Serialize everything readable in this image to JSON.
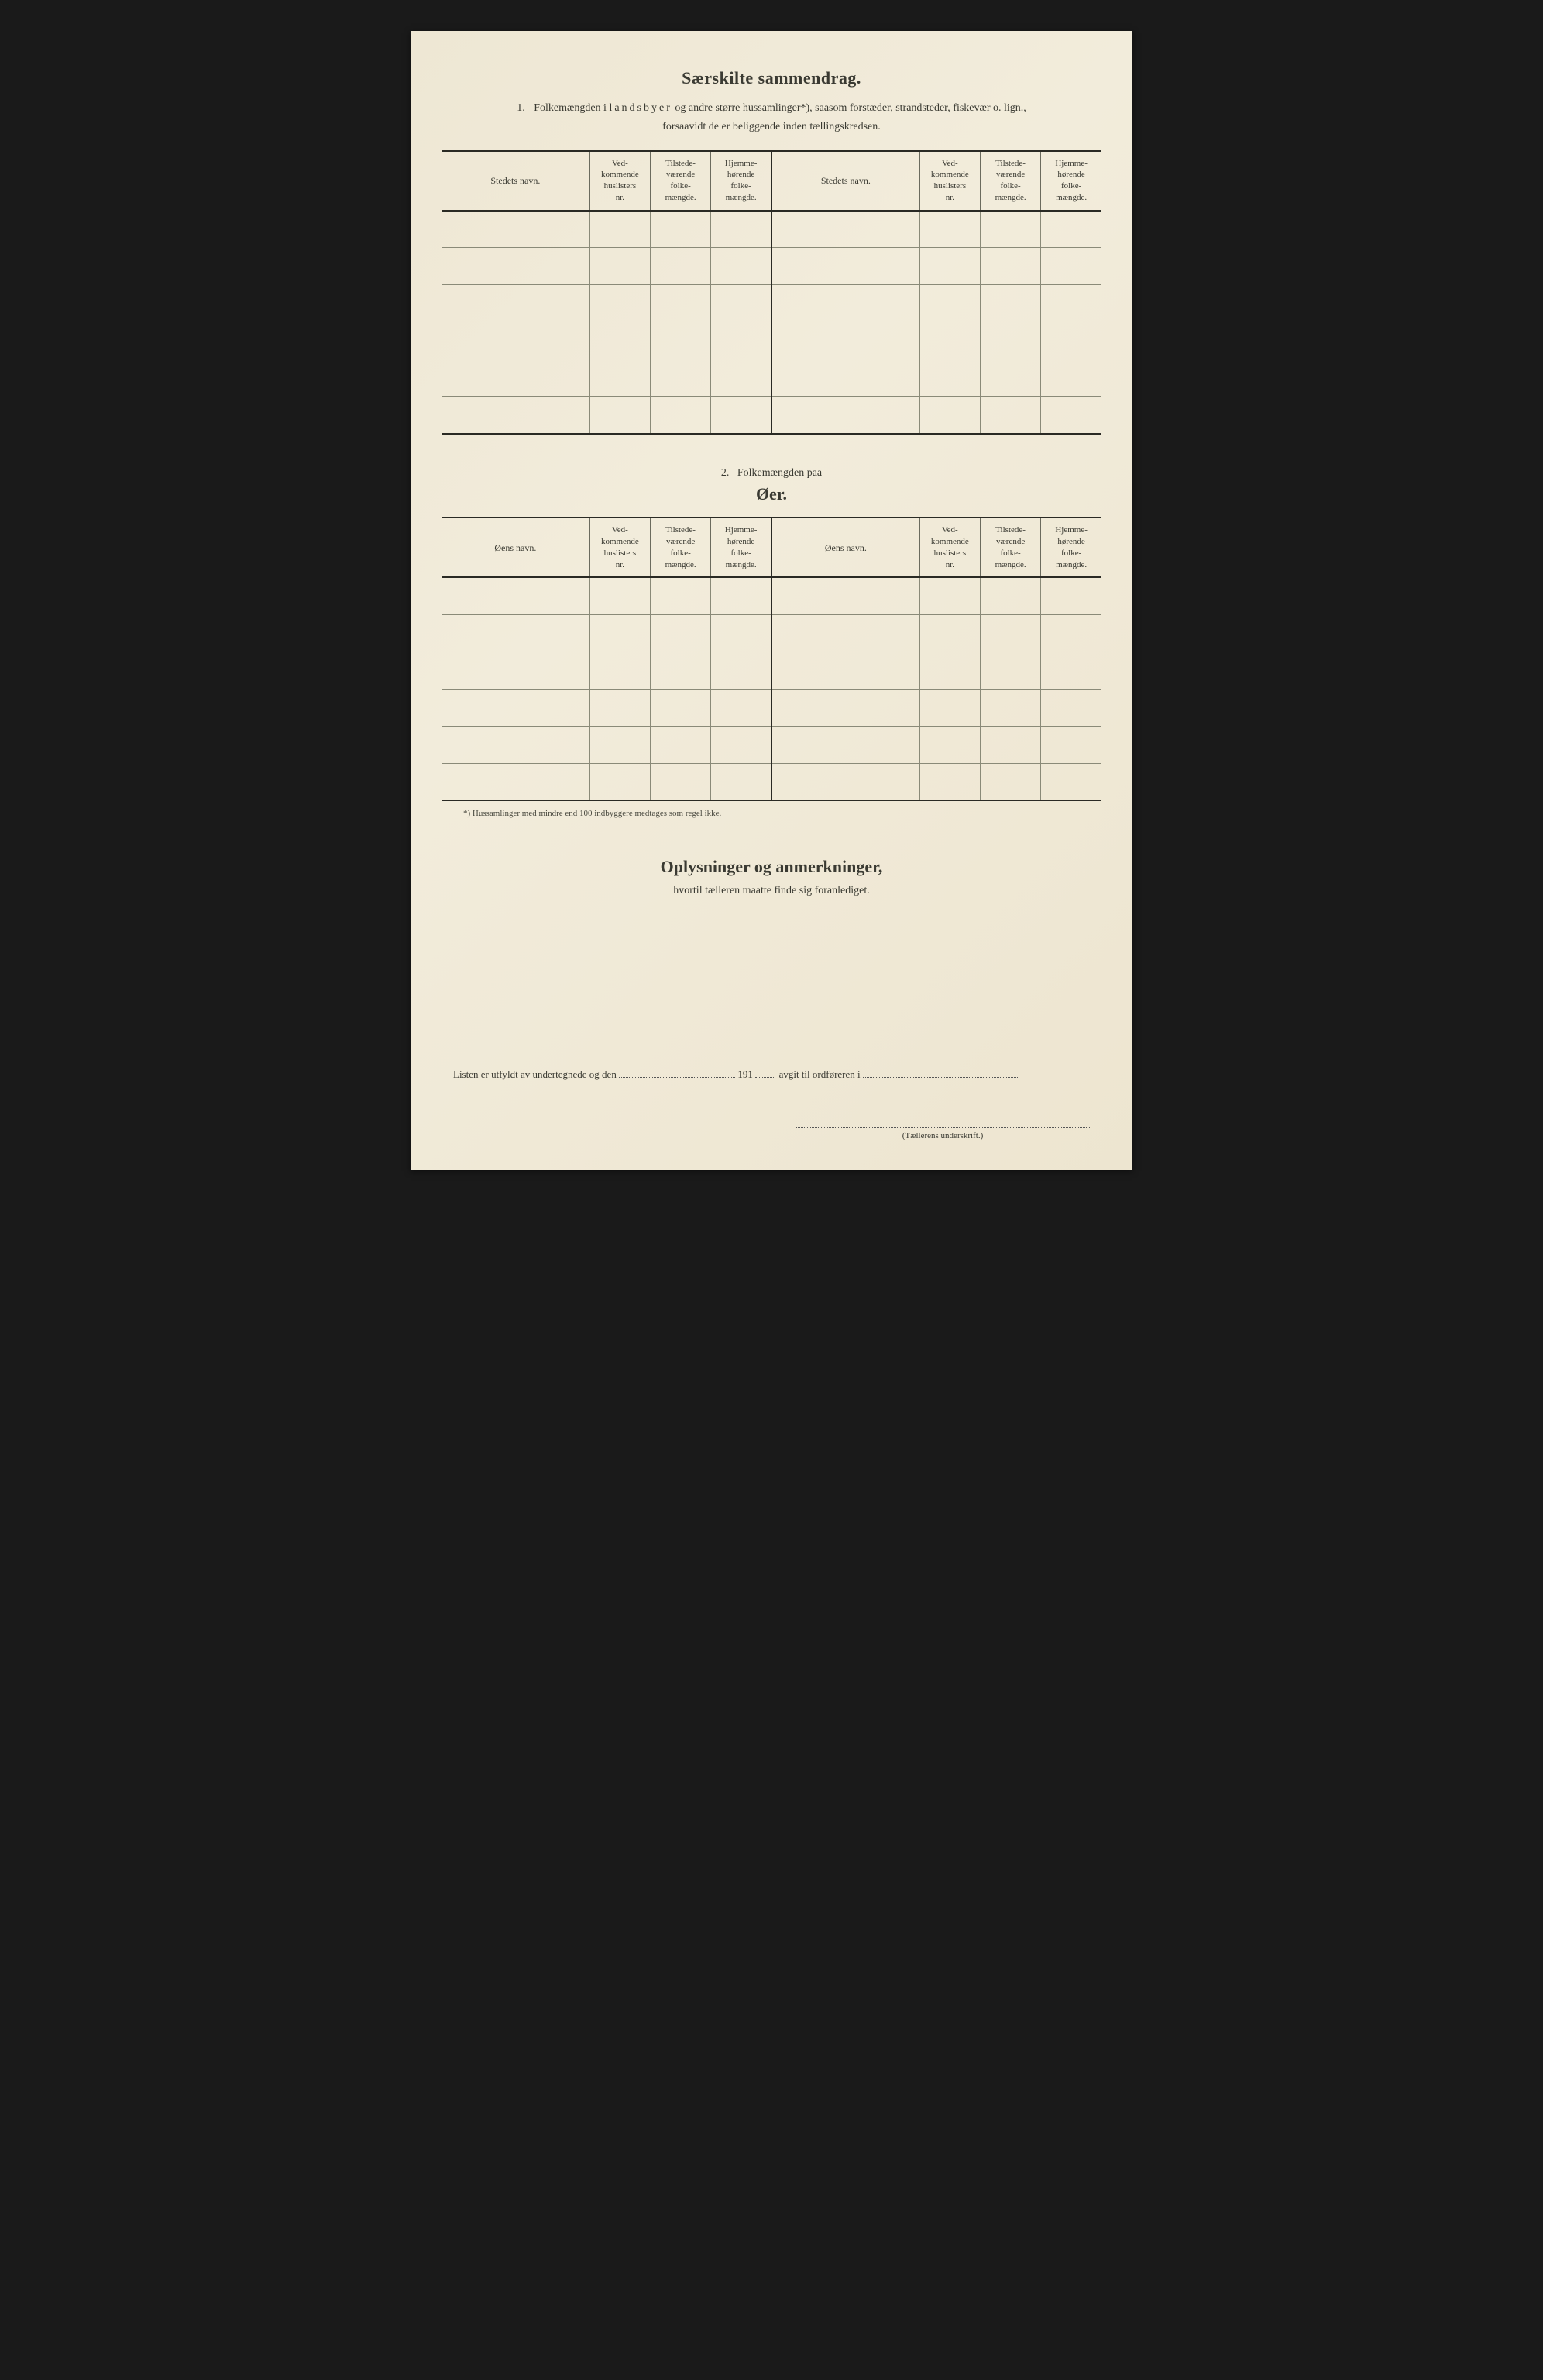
{
  "colors": {
    "paper": "#f0ead8",
    "ink": "#3a3a32",
    "border_heavy": "#2a2a24",
    "border_light": "#8a8a78",
    "background": "#1a1a1a"
  },
  "title": "Særskilte sammendrag.",
  "section1": {
    "number": "1.",
    "intro_part1": "Folkemængden i ",
    "intro_spaced": "landsbyer",
    "intro_part2": " og andre større hussamlinger*), saasom forstæder, strandsteder, fiskevær o. lign.,",
    "intro_line2": "forsaavidt de er beliggende inden tællingskredsen.",
    "columns": {
      "name": "Stedets navn.",
      "col_a": "Ved-\nkommende\nhuslisters\nnr.",
      "col_b": "Tilstede-\nværende\nfolke-\nmængde.",
      "col_c": "Hjemme-\nhørende\nfolke-\nmængde."
    },
    "row_count": 6
  },
  "section2": {
    "number": "2.",
    "line1": "Folkemængden paa",
    "line2": "Øer.",
    "columns": {
      "name": "Øens navn.",
      "col_a": "Ved-\nkommende\nhuslisters\nnr.",
      "col_b": "Tilstede-\nværende\nfolke-\nmængde.",
      "col_c": "Hjemme-\nhørende\nfolke-\nmængde."
    },
    "row_count": 6
  },
  "footnote": "*)  Hussamlinger med mindre end 100 indbyggere medtages som regel ikke.",
  "remarks": {
    "title": "Oplysninger og anmerkninger,",
    "subtitle": "hvortil tælleren maatte finde sig foranlediget."
  },
  "bottom": {
    "part1": "Listen er utfyldt av undertegnede og den",
    "year_prefix": "191",
    "part2": "avgit til ordføreren i"
  },
  "signature_label": "(Tællerens underskrift.)"
}
